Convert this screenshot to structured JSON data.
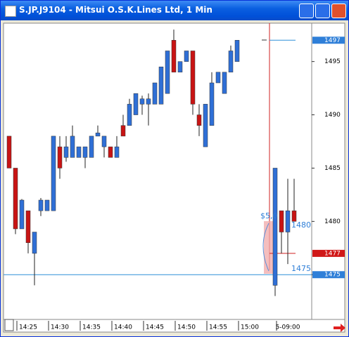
{
  "window": {
    "title": "S.JP.J9104 - Mitsui O.S.K.Lines Ltd, 1 Min"
  },
  "chart_data": {
    "type": "candlestick",
    "categories": [
      null,
      null,
      null,
      "14:25",
      null,
      null,
      null,
      null,
      "14:30",
      null,
      null,
      null,
      null,
      "14:35",
      null,
      null,
      null,
      null,
      "14:40",
      null,
      null,
      null,
      null,
      "14:45",
      null,
      null,
      null,
      null,
      "14:50",
      null,
      null,
      null,
      null,
      "14:55",
      null,
      null,
      null,
      null,
      "15:00",
      null,
      null,
      null,
      null,
      null,
      "5-09:00",
      null
    ],
    "open": [
      1488,
      1485,
      1479.3,
      1481,
      1477,
      1481,
      1481,
      1481,
      1487,
      1486,
      1486,
      1486,
      1486,
      1486,
      1488,
      1487,
      1487,
      1486,
      1489,
      1489,
      1490,
      1491,
      1491,
      1491,
      1491,
      1492,
      1497,
      1494,
      1495,
      1496,
      1490,
      1487,
      1489,
      1493,
      1492,
      1494,
      1495,
      null,
      null,
      null,
      null,
      null,
      1474,
      1481,
      1479,
      1481
    ],
    "high": [
      1488,
      1485,
      1482.1,
      1481,
      1479,
      1482.2,
      1482,
      1488,
      1488,
      1488,
      1489,
      1487,
      1487,
      1488,
      1489,
      1488,
      1487,
      1488,
      1490,
      1491.5,
      1492,
      1491.8,
      1492,
      1493,
      1494.5,
      1496,
      1498,
      1495,
      1496,
      1496,
      1491,
      1491,
      1494,
      1494,
      1494,
      1496.5,
      1497,
      null,
      null,
      null,
      null,
      null,
      1485,
      1481,
      1484,
      1484
    ],
    "low": [
      1485,
      1478.8,
      1479.3,
      1477,
      1474,
      1480.5,
      1481,
      1481,
      1484,
      1485.6,
      1486,
      1486,
      1485,
      1486,
      1488,
      1486,
      1486,
      1486,
      1488,
      1489,
      1490,
      1490,
      1489,
      1491,
      1491,
      1492,
      1494,
      1494,
      1495,
      1490,
      1488,
      1487,
      1489,
      1493,
      1492,
      1494,
      1495,
      null,
      null,
      null,
      null,
      null,
      1473,
      1477,
      1476,
      1480
    ],
    "close": [
      1485,
      1479.3,
      1482,
      1478,
      1479,
      1482,
      1482,
      1488,
      1485,
      1487,
      1488,
      1487,
      1487,
      1488,
      1488.3,
      1488,
      1486,
      1487,
      1488,
      1491,
      1492,
      1491.5,
      1491.5,
      1493,
      1494.5,
      1496,
      1494,
      1495,
      1496,
      1491,
      1489,
      1491,
      1493,
      1494,
      1494,
      1496,
      1497,
      null,
      null,
      null,
      null,
      null,
      1485,
      1479,
      1481,
      1480
    ],
    "up_color": "#2f6fd6",
    "down_color": "#c81414",
    "ylim": [
      1470.8,
      1498.6
    ],
    "yticks": [
      1475,
      1480,
      1485,
      1490,
      1495
    ],
    "price_tags": [
      {
        "value": 1497,
        "color": "#2f7fd8"
      },
      {
        "value": 1477,
        "color": "#d01818"
      },
      {
        "value": 1475,
        "color": "#2f7fd8"
      }
    ],
    "annotations": [
      "$5,0",
      "1480",
      "1475"
    ]
  }
}
